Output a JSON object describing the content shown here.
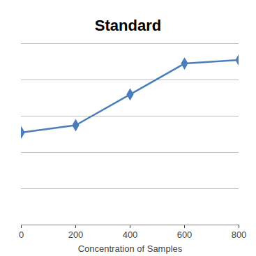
{
  "chart_data": {
    "type": "line",
    "title": "Standard",
    "x_label": "Concentration of Samples",
    "x": [
      0,
      200,
      400,
      600,
      800
    ],
    "series": [
      {
        "name": "Standard",
        "color": "#4a7ebb",
        "marker": "diamond",
        "values": [
          0.51,
          0.55,
          0.72,
          0.89,
          0.91
        ]
      }
    ],
    "xlim": [
      0,
      800
    ],
    "xticks": [
      0,
      200,
      400,
      600,
      800
    ],
    "ylim": [
      0,
      1.0
    ],
    "yticks": [
      0,
      0.2,
      0.4,
      0.6,
      0.8,
      1.0
    ],
    "grid": true,
    "tick_labels": "x"
  }
}
